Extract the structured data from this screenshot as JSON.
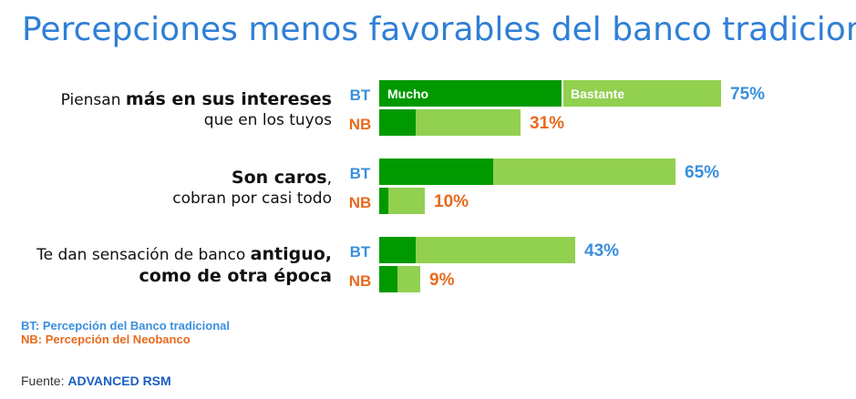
{
  "title": "Percepciones menos favorables del banco tradicional",
  "groups": [
    {
      "label_lines": [
        [
          {
            "text": "Piensan ",
            "bold": false
          },
          {
            "text": "más en sus intereses",
            "bold": true
          }
        ],
        [
          {
            "text": "que en los tuyos",
            "bold": false
          }
        ]
      ]
    },
    {
      "label_lines": [
        [
          {
            "text": "Son caros",
            "bold": true
          },
          {
            "text": ",",
            "bold": false
          }
        ],
        [
          {
            "text": "cobran por casi todo",
            "bold": false
          }
        ]
      ]
    },
    {
      "label_lines": [
        [
          {
            "text": "Te dan sensación  de banco ",
            "bold": false
          },
          {
            "text": "antiguo,",
            "bold": true
          }
        ],
        [
          {
            "text": "como de otra época",
            "bold": true
          }
        ]
      ]
    }
  ],
  "row_tags": {
    "bt": "BT",
    "nb": "NB"
  },
  "colors": {
    "mucho": "#009900",
    "bastante": "#92d050",
    "bt": "#3a8fdd",
    "nb": "#e86a1e"
  },
  "chart_data": {
    "type": "bar",
    "orientation": "horizontal",
    "stacked": true,
    "xlim": [
      0,
      100
    ],
    "segment_labels": {
      "mucho": "Mucho",
      "bastante": "Bastante"
    },
    "bars": [
      {
        "group": 0,
        "row": "BT",
        "mucho": 40,
        "bastante": 35,
        "total_label": "75%"
      },
      {
        "group": 0,
        "row": "NB",
        "mucho": 8,
        "bastante": 23,
        "total_label": "31%"
      },
      {
        "group": 1,
        "row": "BT",
        "mucho": 25,
        "bastante": 40,
        "total_label": "65%"
      },
      {
        "group": 1,
        "row": "NB",
        "mucho": 2,
        "bastante": 8,
        "total_label": "10%"
      },
      {
        "group": 2,
        "row": "BT",
        "mucho": 8,
        "bastante": 35,
        "total_label": "43%"
      },
      {
        "group": 2,
        "row": "NB",
        "mucho": 4,
        "bastante": 5,
        "total_label": "9%"
      }
    ]
  },
  "legend": {
    "bt": "BT:  Percepción del Banco tradicional",
    "nb": "NB:  Percepción del Neobanco"
  },
  "source": {
    "prefix": "Fuente: ",
    "brand": "ADVANCED RSM"
  }
}
